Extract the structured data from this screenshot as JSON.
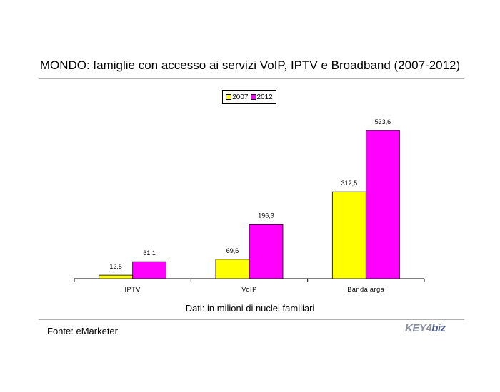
{
  "title": "MONDO: famiglie con accesso ai servizi VoIP, IPTV e Broadband (2007-2012)",
  "note": "Dati: in milioni di nuclei familiari",
  "source": "Fonte: eMarketer",
  "logo": {
    "part1": "KEY",
    "part2": "4",
    "part3": "biz"
  },
  "legend": [
    {
      "label": "2007",
      "color": "#ffff00"
    },
    {
      "label": "2012",
      "color": "#ff00ff"
    }
  ],
  "chart_data": {
    "type": "bar",
    "title": "MONDO: famiglie con accesso ai servizi VoIP, IPTV e Broadband (2007-2012)",
    "categories": [
      "IPTV",
      "VoIP",
      "Bandalarga"
    ],
    "series": [
      {
        "name": "2007",
        "color": "#ffff00",
        "values": [
          12.5,
          69.6,
          312.5
        ],
        "labels": [
          "12,5",
          "69,6",
          "312,5"
        ]
      },
      {
        "name": "2012",
        "color": "#ff00ff",
        "values": [
          61.1,
          196.3,
          533.6
        ],
        "labels": [
          "61,1",
          "196,3",
          "533,6"
        ]
      }
    ],
    "ylim": [
      0,
      600
    ],
    "xlabel": "",
    "ylabel": "",
    "grid": false,
    "legend_position": "top-center"
  }
}
